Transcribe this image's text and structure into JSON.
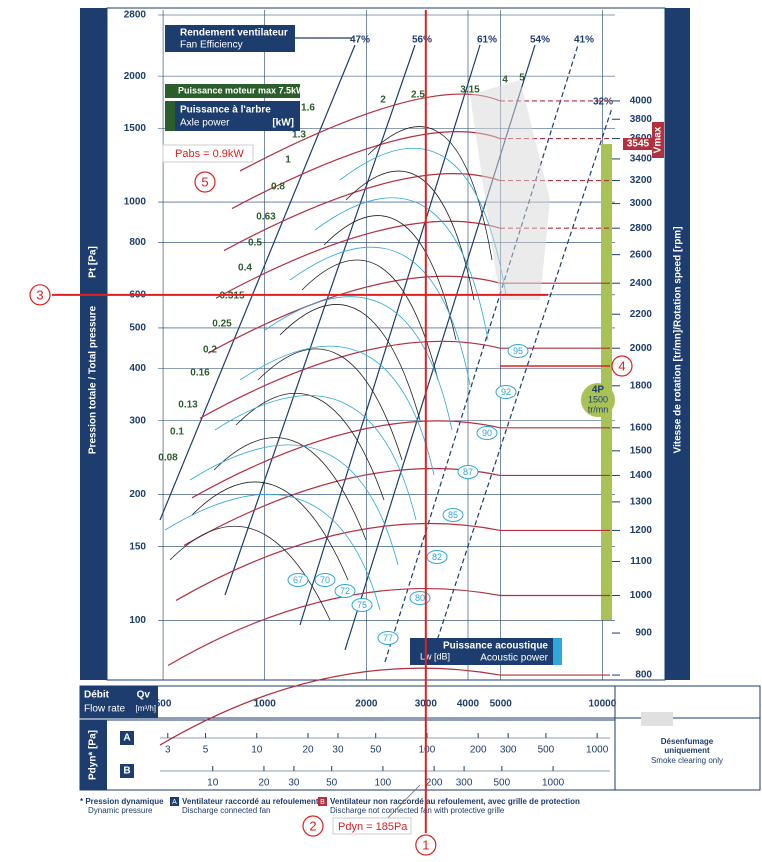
{
  "chart_data": {
    "type": "fan-curve",
    "y_label": "Pression totale / Total pressure",
    "y_unit": "Pt [Pa]",
    "log_scale": true,
    "ylim": [
      72,
      2800
    ],
    "yticks": [
      100,
      150,
      200,
      300,
      400,
      500,
      600,
      800,
      1000,
      1500,
      2000,
      2800
    ],
    "x_label": "Débit",
    "x_symbol": "Qv",
    "x_label_en": "Flow rate",
    "x_unit": "[m³/h]",
    "xlim": [
      483,
      10900
    ],
    "xticks": [
      500,
      1000,
      2000,
      3000,
      4000,
      5000,
      10000
    ],
    "y2_label": "Vitesse de rotation [tr/mn]/Rotation speed  [rpm]",
    "y2lim": [
      789,
      5090
    ],
    "y2ticks": [
      800,
      900,
      1000,
      1100,
      1200,
      1300,
      1400,
      1500,
      1600,
      1800,
      2000,
      2200,
      2400,
      2600,
      2800,
      3000,
      3200,
      3400,
      3600,
      3800,
      4000
    ],
    "vmax_label": "Vmax",
    "vmax_speed": 3545,
    "efficiency_title": "Rendement ventilateur",
    "efficiency_title_en": "Fan Efficiency",
    "efficiency_labels": [
      "47%",
      "56%",
      "61%",
      "54%",
      "41%",
      "32%"
    ],
    "motor_max_label": "Puissance moteur max 7.5kW",
    "power_title": "Puissance à l'arbre",
    "power_title_en": "Axle power",
    "power_unit": "[kW]",
    "power_labels": [
      5,
      4,
      3.15,
      2.5,
      2,
      1.6,
      1.3,
      1,
      0.8,
      0.63,
      0.5,
      0.4,
      0.315,
      0.25,
      0.2,
      0.16,
      0.13,
      0.1,
      0.08
    ],
    "noise_labels": [
      67,
      70,
      72,
      75,
      77,
      80,
      82,
      85,
      87,
      90,
      92,
      95
    ],
    "noise_title": "Puissance acoustique",
    "noise_title_en": "Acoustic power",
    "noise_unit": "Lw [dB]",
    "motor": {
      "poles": "4P",
      "speed": 1500,
      "unit": "tr/mn"
    },
    "pdyn_label": "Pdyn* [Pa]",
    "pdyn_scales": [
      {
        "name": "A",
        "lim": [
          2.7,
          1190
        ],
        "ticks": [
          3,
          5,
          10,
          20,
          30,
          50,
          100,
          200,
          300,
          500,
          1000
        ]
      },
      {
        "name": "B",
        "lim": [
          4.9,
          2160
        ],
        "ticks": [
          10,
          20,
          30,
          50,
          100,
          200,
          300,
          500,
          1000
        ]
      }
    ],
    "smoke_note": [
      "Désenfumage",
      "uniquement"
    ],
    "smoke_note_en": "Smoke clearing only",
    "annotations": {
      "markers": [
        1,
        2,
        3,
        4,
        5
      ],
      "pabs": "Pabs = 0.9kW",
      "pdyn": "Pdyn = 185Pa"
    },
    "footnotes": {
      "star": "* Pression dynamique",
      "star_en": "Dynamic pressure",
      "a": "Ventilateur raccordé au refoulement",
      "a_en": "Discharge connected fan",
      "b": "Ventilateur non raccordé au refoulement, avec grille de protection",
      "b_en": "Discharge not connected fan with protective grille"
    }
  }
}
